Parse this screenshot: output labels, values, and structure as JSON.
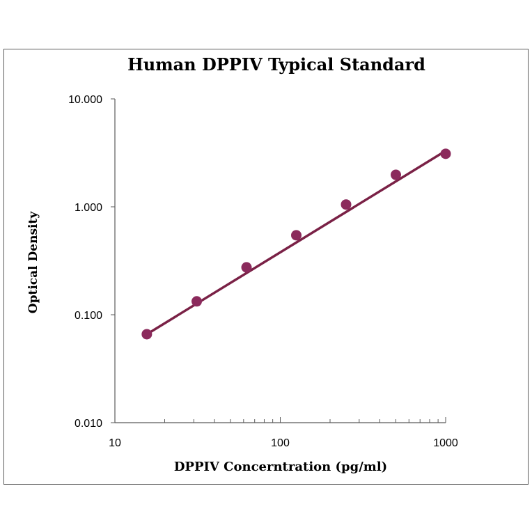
{
  "chart_data": {
    "type": "scatter",
    "title": "Human DPPIV Typical Standard",
    "xlabel": "DPPIV Concerntration (pg/ml)",
    "ylabel": "Optical Density",
    "x_scale": "log",
    "y_scale": "log",
    "xlim": [
      10,
      1000
    ],
    "ylim": [
      0.01,
      10
    ],
    "x_ticks": [
      "10",
      "100",
      "1000"
    ],
    "y_ticks": [
      "10.000",
      "1.000",
      "0.100",
      "0.010"
    ],
    "grid": false,
    "legend": "none",
    "series": [
      {
        "x": [
          15.6,
          31.25,
          62.5,
          125,
          250,
          500,
          1000
        ],
        "y": [
          0.066,
          0.133,
          0.275,
          0.545,
          1.05,
          1.98,
          3.1
        ],
        "marker_color": "#8b2a5c"
      }
    ],
    "fit_line": {
      "x": [
        15.6,
        1000
      ],
      "y": [
        0.066,
        3.3
      ],
      "color": "#7a2146"
    }
  }
}
